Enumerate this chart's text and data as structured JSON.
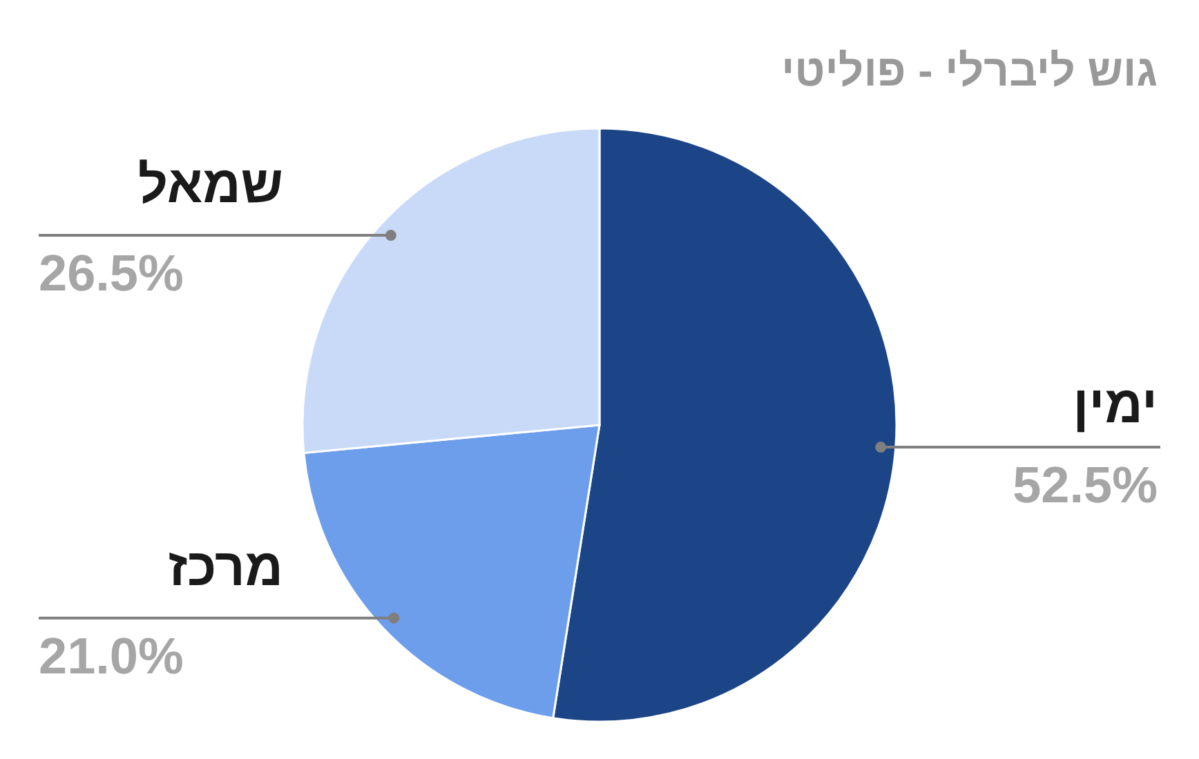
{
  "chart_data": {
    "type": "pie",
    "title": "גוש ליברלי - פוליטי",
    "categories": [
      "ימין",
      "מרכז",
      "שמאל"
    ],
    "values": [
      52.5,
      21.0,
      26.5
    ],
    "value_labels": [
      "52.5%",
      "21.0%",
      "26.5%"
    ],
    "colors": [
      "#1c4587",
      "#6d9eeb",
      "#c9daf8"
    ]
  }
}
